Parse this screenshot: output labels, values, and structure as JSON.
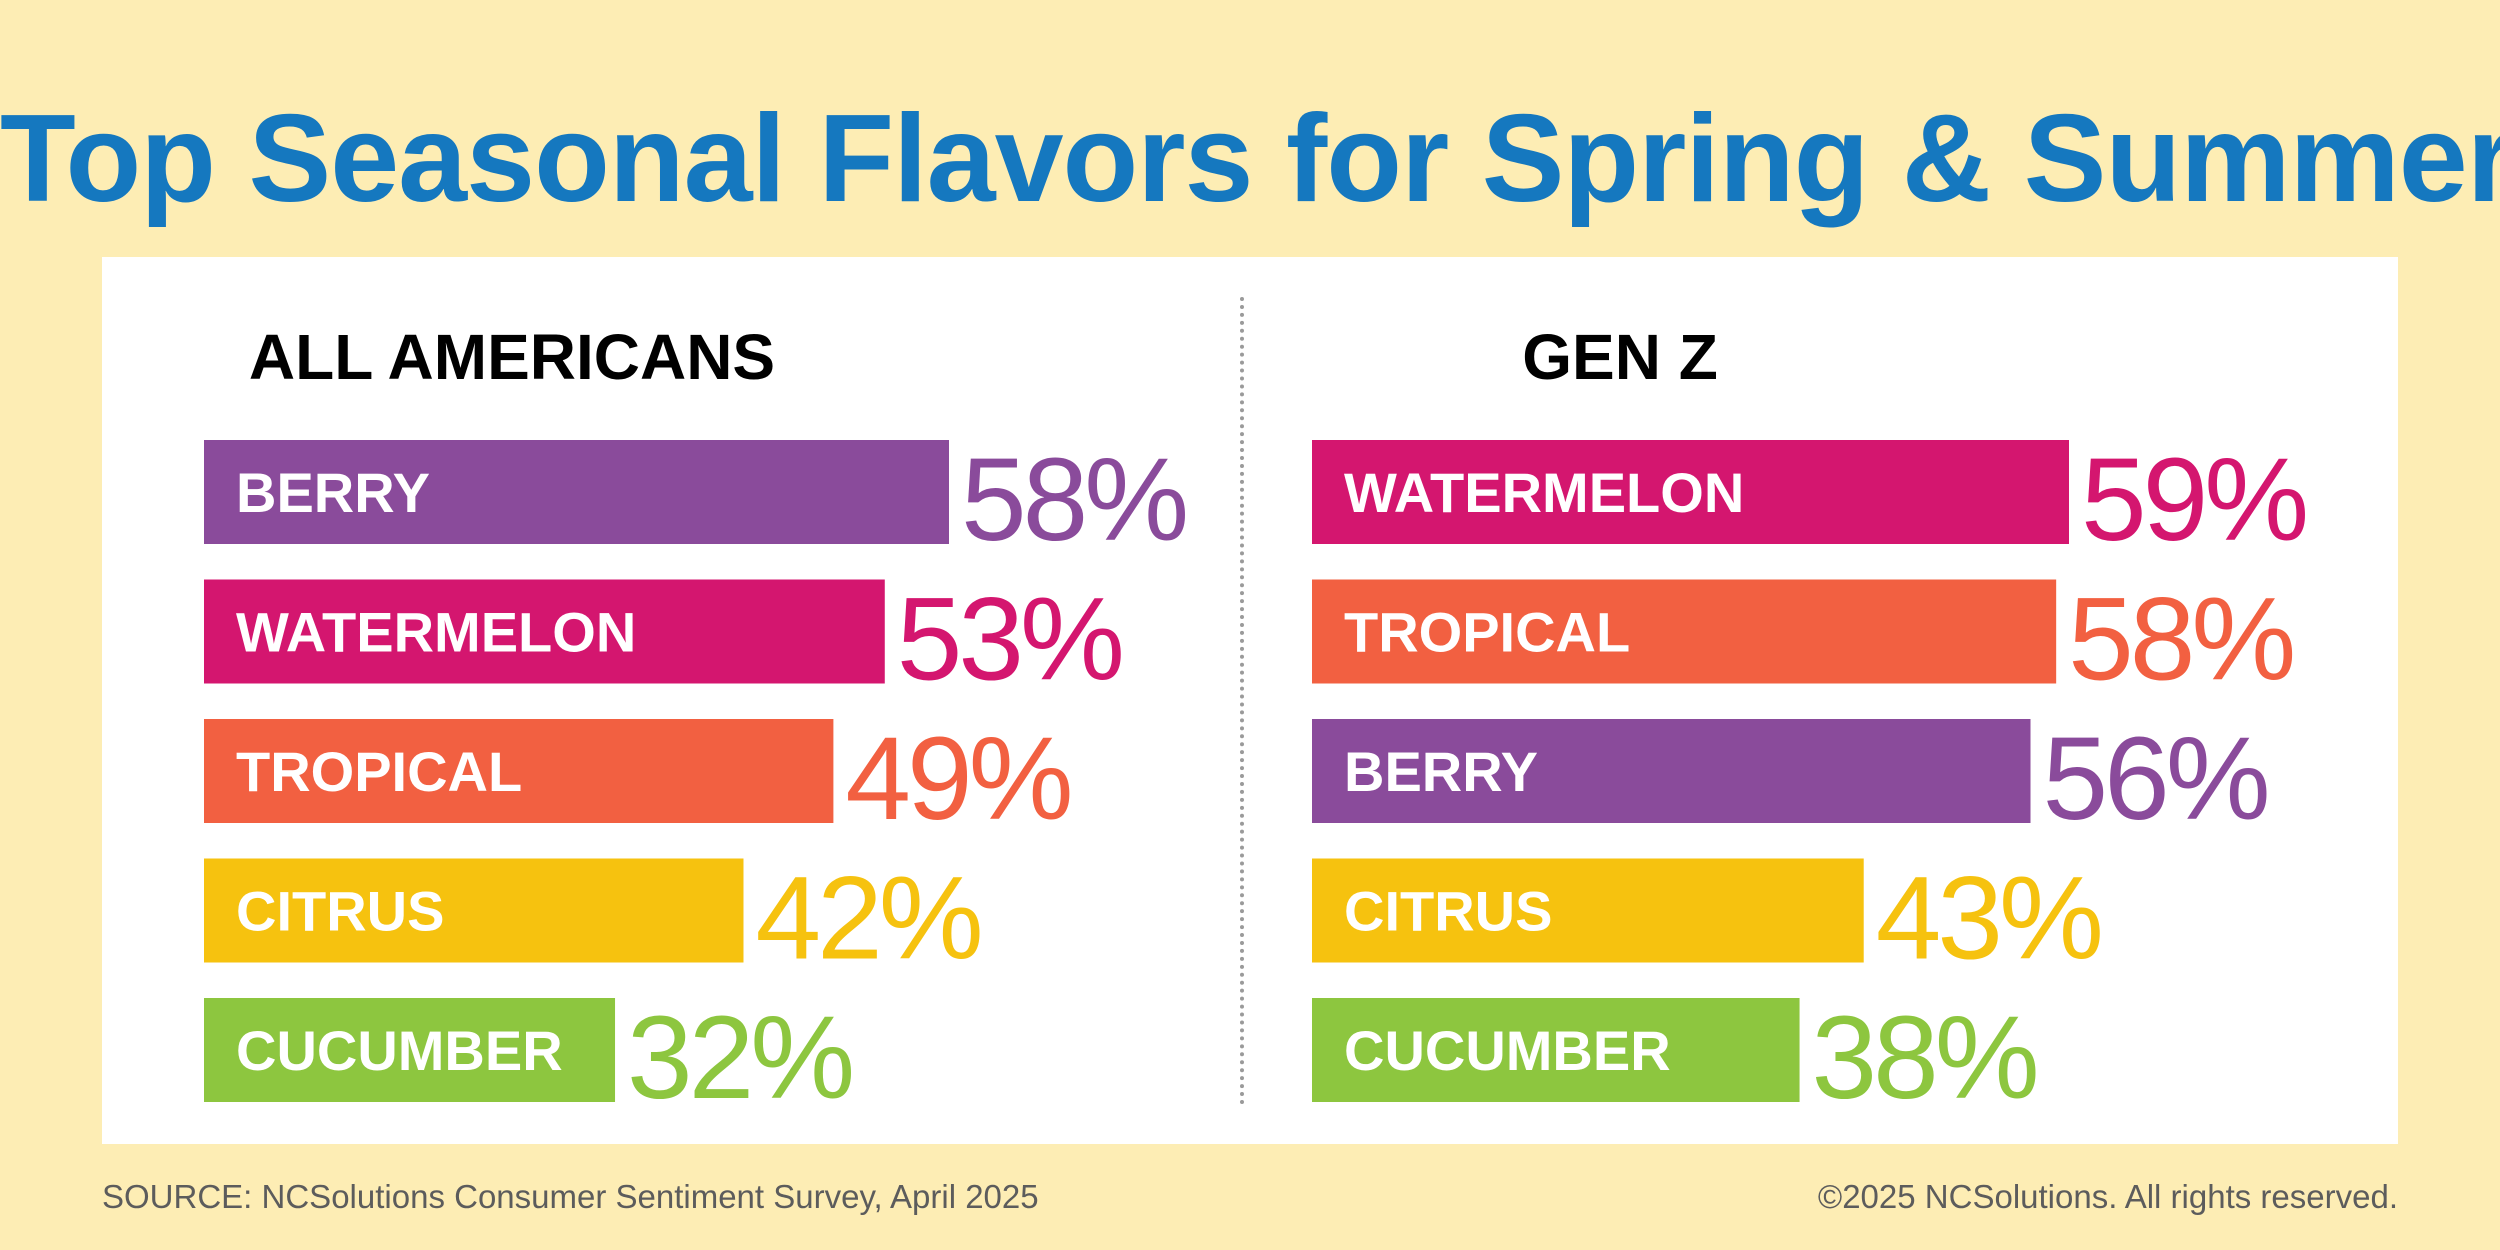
{
  "title": "Top Seasonal Flavors for Spring & Summer",
  "footer": {
    "source": "SOURCE: NCSolutions Consumer Sentiment Survey, April 2025",
    "copyright": "©2025 NCSolutions. All rights reserved."
  },
  "colors": {
    "background": "#fdedb4",
    "title": "#1578bf",
    "berry": "#8a4b9b",
    "watermelon": "#d4166f",
    "tropical": "#f26041",
    "citrus": "#f6c20f",
    "cucumber": "#8dc63f"
  },
  "chart_data": [
    {
      "type": "bar",
      "orientation": "horizontal",
      "title": "ALL AMERICANS",
      "categories": [
        "BERRY",
        "WATERMELON",
        "TROPICAL",
        "CITRUS",
        "CUCUMBER"
      ],
      "values": [
        58,
        53,
        49,
        42,
        32
      ],
      "value_labels": [
        "58%",
        "53%",
        "49%",
        "42%",
        "32%"
      ],
      "colors": [
        "#8a4b9b",
        "#d4166f",
        "#f26041",
        "#f6c20f",
        "#8dc63f"
      ],
      "xlim": [
        0,
        58
      ],
      "grid": false
    },
    {
      "type": "bar",
      "orientation": "horizontal",
      "title": "GEN Z",
      "categories": [
        "WATERMELON",
        "TROPICAL",
        "BERRY",
        "CITRUS",
        "CUCUMBER"
      ],
      "values": [
        59,
        58,
        56,
        43,
        38
      ],
      "value_labels": [
        "59%",
        "58%",
        "56%",
        "43%",
        "38%"
      ],
      "colors": [
        "#d4166f",
        "#f26041",
        "#8a4b9b",
        "#f6c20f",
        "#8dc63f"
      ],
      "xlim": [
        0,
        59
      ],
      "grid": false
    }
  ]
}
